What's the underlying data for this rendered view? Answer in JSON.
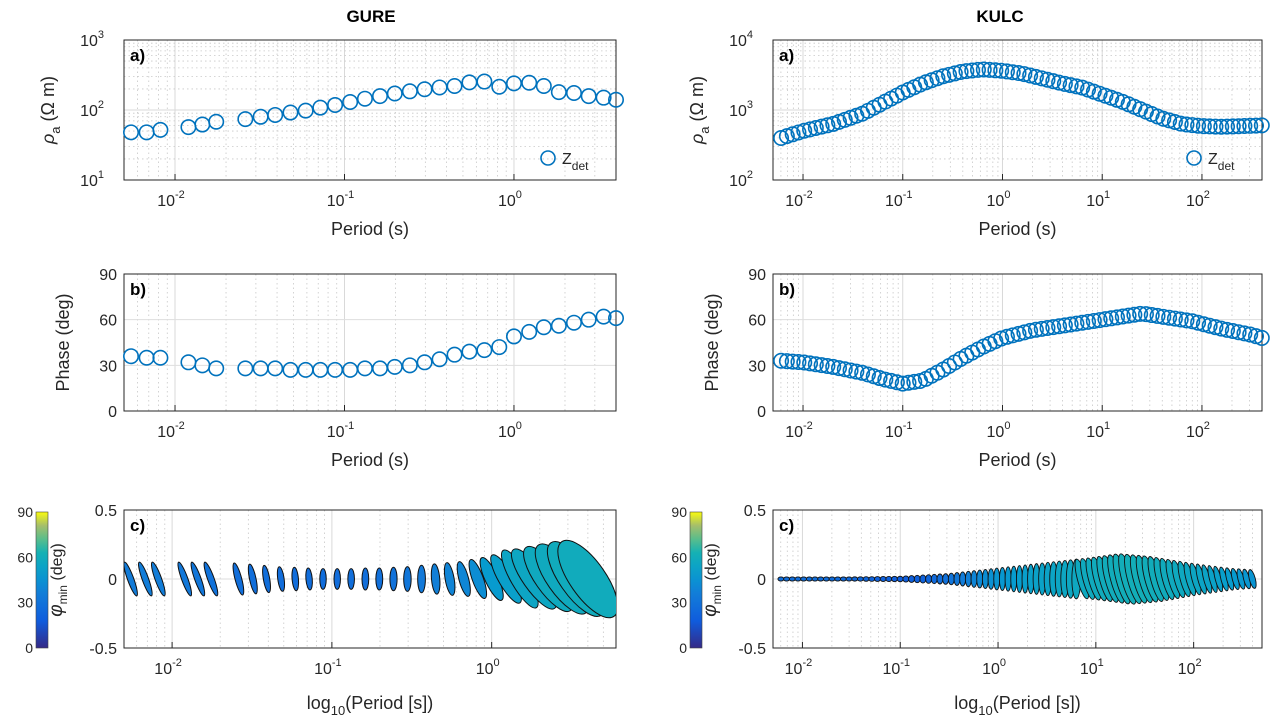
{
  "figure": {
    "columns": [
      {
        "title": "GURE",
        "panels": [
          {
            "type": "scatter",
            "panel_label": "a)",
            "xlabel": "Period (s)",
            "ylabel": "ρa (Ω m)",
            "yscale": "log",
            "xscale": "log",
            "xlim": [
              0.005,
              4.0
            ],
            "ylim": [
              10,
              1000
            ],
            "xticks": [
              -2,
              -1,
              0
            ],
            "yticks": [
              1,
              2,
              3
            ],
            "legend": "Zdet",
            "legend_loc": "bottom-right",
            "series": [
              {
                "name": "Zdet",
                "x": [
                  0.0055,
                  0.0068,
                  0.0082,
                  0.012,
                  0.0145,
                  0.0175,
                  0.026,
                  0.032,
                  0.039,
                  0.048,
                  0.059,
                  0.072,
                  0.088,
                  0.108,
                  0.132,
                  0.162,
                  0.198,
                  0.243,
                  0.297,
                  0.364,
                  0.446,
                  0.546,
                  0.669,
                  0.819,
                  1.0,
                  1.23,
                  1.5,
                  1.84,
                  2.26,
                  2.76,
                  3.38,
                  4.0
                ],
                "y": [
                  48,
                  48,
                  52,
                  57,
                  62,
                  68,
                  74,
                  80,
                  85,
                  92,
                  98,
                  108,
                  118,
                  130,
                  145,
                  158,
                  172,
                  185,
                  198,
                  210,
                  220,
                  248,
                  255,
                  215,
                  240,
                  245,
                  220,
                  180,
                  175,
                  158,
                  150,
                  140
                ]
              }
            ]
          },
          {
            "type": "scatter",
            "panel_label": "b)",
            "xlabel": "Period (s)",
            "ylabel": "Phase (deg)",
            "xscale": "log",
            "xlim": [
              0.005,
              4.0
            ],
            "ylim": [
              0,
              90
            ],
            "yticks": [
              0,
              30,
              60,
              90
            ],
            "series": [
              {
                "name": "Zdet",
                "x": [
                  0.0055,
                  0.0068,
                  0.0082,
                  0.012,
                  0.0145,
                  0.0175,
                  0.026,
                  0.032,
                  0.039,
                  0.048,
                  0.059,
                  0.072,
                  0.088,
                  0.108,
                  0.132,
                  0.162,
                  0.198,
                  0.243,
                  0.297,
                  0.364,
                  0.446,
                  0.546,
                  0.669,
                  0.819,
                  1.0,
                  1.23,
                  1.5,
                  1.84,
                  2.26,
                  2.76,
                  3.38,
                  4.0
                ],
                "y": [
                  36,
                  35,
                  35,
                  32,
                  30,
                  28,
                  28,
                  28,
                  28,
                  27,
                  27,
                  27,
                  27,
                  27,
                  28,
                  28,
                  29,
                  30,
                  32,
                  34,
                  37,
                  39,
                  40,
                  42,
                  49,
                  52,
                  55,
                  56,
                  58,
                  60,
                  62,
                  61
                ]
              }
            ]
          },
          {
            "type": "ellipse",
            "panel_label": "c)",
            "xlabel": "log10(Period [s])",
            "ylabel": "φmin (deg)",
            "xscale": "log",
            "xlim": [
              0.005,
              6.0
            ],
            "ylim": [
              -0.5,
              0.5
            ],
            "yticks": [
              -0.5,
              0,
              0.5
            ],
            "colorbar": {
              "min": 0,
              "max": 90,
              "ticks": [
                0,
                30,
                60,
                90
              ]
            },
            "x": [
              0.0055,
              0.0068,
              0.0082,
              0.012,
              0.0145,
              0.0175,
              0.026,
              0.032,
              0.039,
              0.048,
              0.059,
              0.072,
              0.088,
              0.108,
              0.132,
              0.162,
              0.198,
              0.243,
              0.297,
              0.364,
              0.446,
              0.546,
              0.669,
              0.819,
              1.0,
              1.23,
              1.5,
              1.84,
              2.26,
              2.76,
              3.38,
              4.0
            ],
            "phimin": [
              35,
              36,
              36,
              33,
              32,
              30,
              28,
              28,
              28,
              27,
              27,
              27,
              27,
              27,
              28,
              28,
              29,
              30,
              32,
              34,
              37,
              39,
              40,
              43,
              49,
              52,
              55,
              56,
              58,
              58,
              59,
              59
            ],
            "rx": [
              0.045,
              0.046,
              0.047,
              0.045,
              0.046,
              0.047,
              0.048,
              0.047,
              0.046,
              0.046,
              0.046,
              0.046,
              0.047,
              0.047,
              0.048,
              0.049,
              0.05,
              0.052,
              0.054,
              0.056,
              0.06,
              0.065,
              0.07,
              0.08,
              0.095,
              0.11,
              0.13,
              0.16,
              0.19,
              0.22,
              0.24,
              0.26
            ],
            "ry": [
              0.13,
              0.13,
              0.13,
              0.13,
              0.13,
              0.13,
              0.12,
              0.11,
              0.1,
              0.09,
              0.085,
              0.08,
              0.075,
              0.075,
              0.075,
              0.08,
              0.08,
              0.085,
              0.09,
              0.1,
              0.11,
              0.12,
              0.13,
              0.15,
              0.17,
              0.2,
              0.24,
              0.26,
              0.28,
              0.3,
              0.32,
              0.33
            ],
            "tilt": [
              -20,
              -20,
              -20,
              -20,
              -20,
              -20,
              -15,
              -12,
              -10,
              -8,
              -5,
              -5,
              0,
              0,
              0,
              0,
              0,
              0,
              0,
              0,
              -5,
              -10,
              -15,
              -20,
              -25,
              -30,
              -30,
              -35,
              -35,
              -35,
              -35,
              -35
            ]
          }
        ]
      },
      {
        "title": "KULC",
        "panels": [
          {
            "type": "scatter",
            "panel_label": "a)",
            "xlabel": "Period (s)",
            "ylabel": "ρa (Ω m)",
            "xscale": "log",
            "yscale": "log",
            "xlim": [
              0.005,
              400
            ],
            "ylim": [
              100,
              10000
            ],
            "xticks": [
              -2,
              -1,
              0,
              1,
              2
            ],
            "yticks": [
              2,
              3,
              4
            ],
            "legend": "Zdet",
            "legend_loc": "bottom-right",
            "rho_log": [
              [
                -2.22,
                2.6
              ],
              [
                -2.0,
                2.7
              ],
              [
                -1.7,
                2.8
              ],
              [
                -1.4,
                2.95
              ],
              [
                -1.2,
                3.1
              ],
              [
                -1.0,
                3.25
              ],
              [
                -0.8,
                3.38
              ],
              [
                -0.6,
                3.48
              ],
              [
                -0.4,
                3.55
              ],
              [
                -0.2,
                3.58
              ],
              [
                0.0,
                3.56
              ],
              [
                0.2,
                3.52
              ],
              [
                0.4,
                3.45
              ],
              [
                0.6,
                3.38
              ],
              [
                0.8,
                3.32
              ],
              [
                1.0,
                3.22
              ],
              [
                1.2,
                3.12
              ],
              [
                1.4,
                3.0
              ],
              [
                1.6,
                2.88
              ],
              [
                1.8,
                2.8
              ],
              [
                2.0,
                2.77
              ],
              [
                2.2,
                2.76
              ],
              [
                2.4,
                2.77
              ],
              [
                2.6,
                2.78
              ]
            ]
          },
          {
            "type": "scatter",
            "panel_label": "b)",
            "xlabel": "Period (s)",
            "ylabel": "Phase (deg)",
            "xscale": "log",
            "xlim": [
              0.005,
              400
            ],
            "ylim": [
              0,
              90
            ],
            "yticks": [
              0,
              30,
              60,
              90
            ],
            "phase_log": [
              [
                -2.22,
                33
              ],
              [
                -2.0,
                32
              ],
              [
                -1.7,
                29
              ],
              [
                -1.4,
                25
              ],
              [
                -1.2,
                21
              ],
              [
                -1.0,
                18
              ],
              [
                -0.8,
                20
              ],
              [
                -0.6,
                27
              ],
              [
                -0.4,
                35
              ],
              [
                -0.2,
                42
              ],
              [
                0.0,
                48
              ],
              [
                0.3,
                53
              ],
              [
                0.6,
                56
              ],
              [
                0.9,
                59
              ],
              [
                1.2,
                62
              ],
              [
                1.4,
                64
              ],
              [
                1.6,
                62
              ],
              [
                1.9,
                59
              ],
              [
                2.2,
                54
              ],
              [
                2.5,
                50
              ],
              [
                2.6,
                48
              ]
            ]
          },
          {
            "type": "ellipse",
            "panel_label": "c)",
            "xlabel": "log10(Period [s])",
            "ylabel": "φmin (deg)",
            "xscale": "log",
            "xlim": [
              0.005,
              500
            ],
            "ylim": [
              -0.5,
              0.5
            ],
            "yticks": [
              -0.5,
              0,
              0.5
            ],
            "colorbar": {
              "min": 0,
              "max": 90,
              "ticks": [
                0,
                30,
                60,
                90
              ]
            },
            "phi_log": [
              [
                -2.22,
                28
              ],
              [
                -2.0,
                28
              ],
              [
                -1.7,
                27
              ],
              [
                -1.4,
                24
              ],
              [
                -1.2,
                21
              ],
              [
                -1.0,
                19
              ],
              [
                -0.8,
                21
              ],
              [
                -0.6,
                27
              ],
              [
                -0.4,
                34
              ],
              [
                -0.2,
                41
              ],
              [
                0.0,
                47
              ],
              [
                0.3,
                52
              ],
              [
                0.6,
                55
              ],
              [
                0.9,
                58
              ],
              [
                1.2,
                60
              ],
              [
                1.4,
                61
              ],
              [
                1.6,
                60
              ],
              [
                1.9,
                57
              ],
              [
                2.2,
                53
              ],
              [
                2.5,
                48
              ],
              [
                2.6,
                46
              ]
            ],
            "ry_log": [
              [
                -2.22,
                0.015
              ],
              [
                -1.5,
                0.015
              ],
              [
                -1.0,
                0.02
              ],
              [
                -0.5,
                0.04
              ],
              [
                0.0,
                0.08
              ],
              [
                0.5,
                0.12
              ],
              [
                1.0,
                0.16
              ],
              [
                1.3,
                0.19
              ],
              [
                1.6,
                0.17
              ],
              [
                2.0,
                0.12
              ],
              [
                2.4,
                0.08
              ],
              [
                2.6,
                0.07
              ]
            ]
          }
        ]
      }
    ]
  },
  "labels": {
    "title_left": "GURE",
    "title_right": "KULC",
    "a_label": "a)",
    "b_label": "b)",
    "c_label": "c)",
    "xlabel_period": "Period (s)",
    "ylabel_phase": "Phase (deg)",
    "ylabel_rho_sym": "ρ",
    "ylabel_rho_sub": "a",
    "ylabel_rho_unit": " (Ω m)",
    "legend_Z": "Z",
    "legend_sub": "det",
    "xlabel_log": "log",
    "xlabel_log_sub": "10",
    "xlabel_log_rest": "(Period [s])",
    "phi_sym": "φ",
    "phi_sub": "min",
    "phi_unit": " (deg)"
  },
  "colors": {
    "marker": "#0072BD",
    "grid": "#b8b8b8",
    "axis": "#262626"
  },
  "colormap": "parula"
}
